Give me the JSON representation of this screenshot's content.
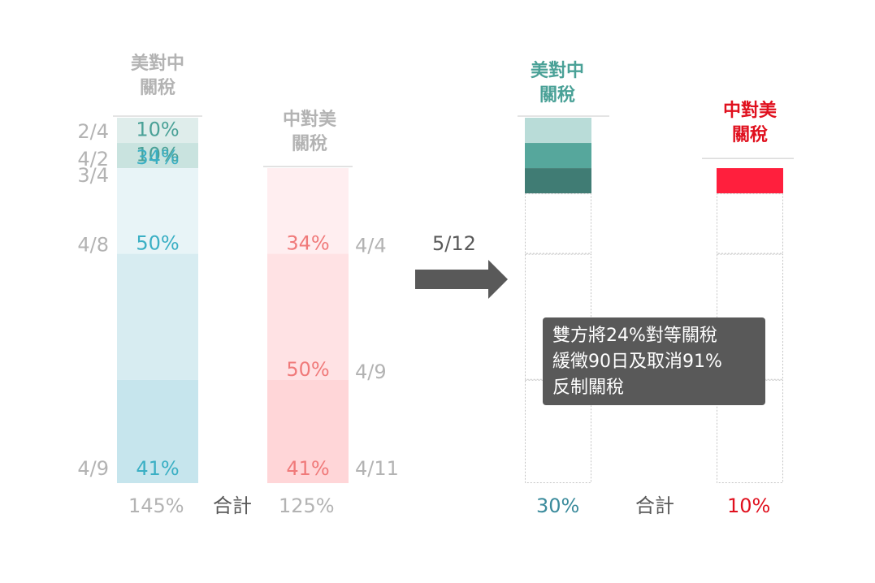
{
  "colors": {
    "grey_text": "#b3b3b3",
    "dark_text": "#595959",
    "arrow": "#595959",
    "us_new_header": "#4aa197",
    "us_total_new": "#3b8b9c",
    "cn_new": "#e0101e",
    "red_block": "#ff1f3d"
  },
  "before": {
    "us_header": [
      "美對中",
      "關稅"
    ],
    "cn_header": [
      "中對美",
      "關稅"
    ],
    "us_total": "145%",
    "cn_total": "125%",
    "total_label": "合計"
  },
  "after": {
    "date_label": "5/12",
    "us_header": [
      "美對中",
      "關稅"
    ],
    "cn_header": [
      "中對美",
      "關稅"
    ],
    "us_total": "30%",
    "cn_total": "10%",
    "total_label": "合計",
    "callout_lines": [
      "雙方將24%對等關稅",
      "緩徵90日及取消91%",
      "反制關稅"
    ]
  },
  "chart_data": [
    {
      "type": "bar",
      "stacked": true,
      "subtitle": "美對中關稅",
      "categories": [
        "2/4",
        "3/4",
        "4/2",
        "4/8",
        "4/9"
      ],
      "values": [
        10,
        10,
        34,
        50,
        41
      ],
      "value_labels": [
        "10%",
        "10%",
        "34%",
        "50%",
        "41%"
      ],
      "colors": [
        "#dfedeb",
        "#c9e3df",
        "#e8f4f7",
        "#d7ecf1",
        "#c6e5ed"
      ],
      "label_colors": [
        "#4aa197",
        "#4aa197",
        "#3aafc4",
        "#3aafc4",
        "#3aafc4"
      ],
      "total": "145%"
    },
    {
      "type": "bar",
      "stacked": true,
      "subtitle": "中對美關稅",
      "categories": [
        "4/4",
        "4/9",
        "4/11"
      ],
      "values": [
        34,
        50,
        41
      ],
      "value_labels": [
        "34%",
        "50%",
        "41%"
      ],
      "colors": [
        "#ffeef0",
        "#ffe2e4",
        "#ffd6d8"
      ],
      "label_colors": [
        "#f07a7a",
        "#f07a7a",
        "#f07a7a"
      ],
      "total": "125%"
    },
    {
      "type": "bar",
      "stacked": true,
      "subtitle": "美對中關稅 (5/12)",
      "values": [
        10,
        10,
        10
      ],
      "colors": [
        "#b9dcd8",
        "#56a79c",
        "#407c74"
      ],
      "suspended": [
        24,
        50,
        41
      ],
      "total": "30%"
    },
    {
      "type": "bar",
      "stacked": true,
      "subtitle": "中對美關稅 (5/12)",
      "values": [
        10
      ],
      "colors": [
        "#ff1f3d"
      ],
      "suspended": [
        24,
        50,
        41
      ],
      "total": "10%"
    }
  ]
}
